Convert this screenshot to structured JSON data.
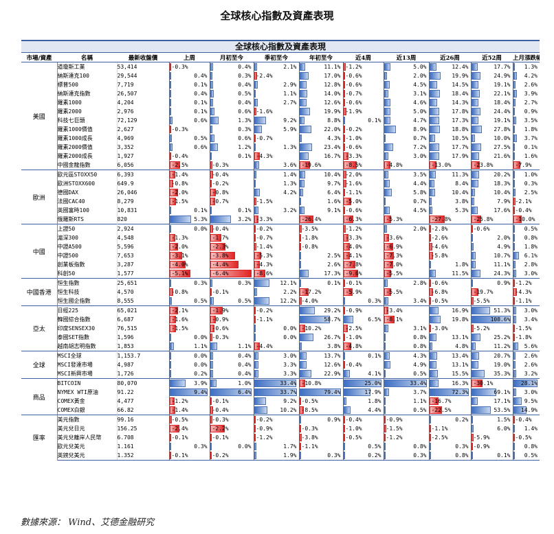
{
  "title": "全球核心指數及資產表現",
  "table_title": "全球核心指數及資產表現",
  "source": "數據來源： Wind、艾德金融研究",
  "headers": [
    "市場/資產",
    "名稱",
    "最新收盤價",
    "上周",
    "月初至今",
    "季初至今",
    "年初至今",
    "近4周",
    "近13周",
    "近26周",
    "近52周",
    "上月漲跌幅"
  ],
  "colors": {
    "positive_bar": "#3e6fc4",
    "negative_bar": "#e02424",
    "rule": "#3b5fa0"
  },
  "groups": [
    {
      "region": "美國",
      "rows": [
        {
          "name": "道瓊斯工業",
          "close": "53,414",
          "values": [
            -0.3,
            0.4,
            2.1,
            11.1,
            -1.2,
            5.0,
            12.4,
            17.7,
            1.3
          ]
        },
        {
          "name": "納斯達克100",
          "close": "29,544",
          "values": [
            0.4,
            0.3,
            -2.4,
            17.0,
            -0.6,
            2.0,
            19.9,
            24.9,
            4.2
          ]
        },
        {
          "name": "標普500",
          "close": "7,719",
          "values": [
            0.1,
            0.4,
            2.9,
            12.8,
            -0.6,
            4.5,
            14.5,
            19.1,
            2.6
          ]
        },
        {
          "name": "納斯達克指數",
          "close": "26,507",
          "values": [
            0.4,
            0.5,
            1.1,
            14.0,
            -0.7,
            3.1,
            18.4,
            22.1,
            3.9
          ]
        },
        {
          "name": "羅素1000",
          "close": "4,204",
          "values": [
            0.1,
            0.4,
            2.7,
            12.6,
            -0.6,
            4.6,
            14.3,
            18.4,
            2.7
          ]
        },
        {
          "name": "羅素2000",
          "close": "2,976",
          "values": [
            0.1,
            0.6,
            -1.6,
            19.9,
            -1.9,
            5.0,
            17.8,
            24.4,
            0.9
          ]
        },
        {
          "name": "科技七巨頭",
          "close": "72,129",
          "values": [
            0.6,
            1.3,
            9.2,
            8.8,
            0.1,
            4.7,
            17.3,
            19.1,
            3.5
          ]
        },
        {
          "name": "羅素1000價值",
          "close": "2,627",
          "values": [
            -0.3,
            0.3,
            5.9,
            22.0,
            -0.2,
            8.9,
            18.8,
            27.8,
            1.8
          ]
        },
        {
          "name": "羅素1000成長",
          "close": "4,969",
          "values": [
            0.5,
            0.6,
            -0.7,
            4.3,
            -1.0,
            0.7,
            10.5,
            10.0,
            3.7
          ]
        },
        {
          "name": "羅素2000價值",
          "close": "3,352",
          "values": [
            0.6,
            1.2,
            1.3,
            23.4,
            -0.6,
            7.2,
            17.7,
            27.5,
            0.1
          ]
        },
        {
          "name": "羅素2000成長",
          "close": "1,927",
          "values": [
            -0.4,
            0.1,
            -4.3,
            16.7,
            -3.3,
            3.0,
            17.9,
            21.6,
            1.6
          ]
        },
        {
          "name": "中國金龍指數",
          "close": "6,056",
          "values": [
            -2.5,
            -0.3,
            3.6,
            -19.6,
            -8.5,
            -4.8,
            -13.0,
            -23.8,
            -7.9
          ]
        }
      ]
    },
    {
      "region": "歐洲",
      "rows": [
        {
          "name": "歐元區STOXX50",
          "close": "6,393",
          "values": [
            -1.4,
            -0.4,
            1.4,
            10.4,
            -2.0,
            3.5,
            11.3,
            20.2,
            1.0
          ]
        },
        {
          "name": "歐洲STOXX600",
          "close": "649.9",
          "values": [
            -0.8,
            -0.2,
            1.3,
            9.7,
            -1.6,
            4.4,
            8.4,
            18.3,
            0.3
          ]
        },
        {
          "name": "德國DAX",
          "close": "26,046",
          "values": [
            -2.0,
            -0.8,
            4.2,
            6.4,
            -1.1,
            5.8,
            10.4,
            10.4,
            2.5
          ]
        },
        {
          "name": "法國CAC40",
          "close": "8,279",
          "values": [
            -1.5,
            -0.7,
            -1.5,
            1.6,
            -5.0,
            0.7,
            3.8,
            7.9,
            -2.1
          ]
        },
        {
          "name": "英國富時100",
          "close": "10,831",
          "values": [
            0.1,
            0.1,
            3.2,
            9.1,
            -0.6,
            4.5,
            5.3,
            17.6,
            -0.4
          ]
        },
        {
          "name": "俄羅斯RTS",
          "close": "820",
          "values": [
            5.3,
            3.2,
            -3.3,
            -26.4,
            -6.3,
            -5.3,
            -27.8,
            -25.8,
            -10.0
          ]
        }
      ]
    },
    {
      "region": "中國",
      "rows": [
        {
          "name": "上證50",
          "close": "2,924",
          "values": [
            0.0,
            -0.4,
            -0.2,
            -3.5,
            -1.2,
            2.0,
            -2.8,
            -0.6,
            0.5
          ]
        },
        {
          "name": "滬深300",
          "close": "4,548",
          "values": [
            -1.3,
            -1.7,
            -0.7,
            -1.8,
            -3.3,
            -3.6,
            -2.6,
            2.0,
            0.8
          ]
        },
        {
          "name": "中證A500",
          "close": "5,596",
          "values": [
            -2.0,
            -2.3,
            -1.4,
            -0.8,
            -4.0,
            -6.9,
            -4.6,
            4.9,
            1.8
          ]
        },
        {
          "name": "中證500",
          "close": "7,653",
          "values": [
            -3.1,
            -3.8,
            -5.3,
            2.5,
            -4.1,
            -7.3,
            -5.8,
            10.7,
            6.1
          ]
        },
        {
          "name": "創業板指數",
          "close": "3,287",
          "values": [
            -4.0,
            -4.4,
            -4.3,
            2.6,
            -7.8,
            -7.0,
            1.8,
            11.1,
            2.8
          ]
        },
        {
          "name": "科創50",
          "close": "1,577",
          "values": [
            -5.1,
            -6.4,
            -8.6,
            17.3,
            -9.6,
            -5.5,
            11.5,
            24.3,
            3.0
          ]
        }
      ]
    },
    {
      "region": "中國香港",
      "rows": [
        {
          "name": "恒生指數",
          "close": "25,651",
          "values": [
            0.3,
            0.3,
            12.1,
            0.1,
            -0.1,
            2.8,
            -0.6,
            0.9,
            -1.2
          ]
        },
        {
          "name": "恒生科技",
          "close": "4,570",
          "values": [
            -0.8,
            -0.1,
            2.2,
            -17.2,
            -5.9,
            -5.5,
            -6.8,
            -19.7,
            -4.3
          ]
        },
        {
          "name": "恒生國企指數",
          "close": "8,555",
          "values": [
            0.5,
            0.5,
            12.2,
            -4.0,
            0.3,
            3.4,
            -0.5,
            -5.5,
            -1.1
          ]
        }
      ]
    },
    {
      "region": "亞太",
      "rows": [
        {
          "name": "日經225",
          "close": "65,021",
          "values": [
            -2.1,
            -1.9,
            -0.2,
            29.2,
            -0.9,
            -3.4,
            16.9,
            51.3,
            3.0
          ]
        },
        {
          "name": "韓國綜合指數",
          "close": "6,687",
          "values": [
            -1.6,
            -0.9,
            -1.1,
            58.7,
            6.5,
            -8.1,
            19.8,
            108.6,
            3.4
          ]
        },
        {
          "name": "印度SENSEX30",
          "close": "76,515",
          "values": [
            -1.5,
            -0.6,
            0.0,
            -10.2,
            -2.5,
            3.1,
            -3.0,
            -5.2,
            -1.5
          ]
        },
        {
          "name": "泰國SET指數",
          "close": "1,596",
          "values": [
            0.0,
            -0.3,
            0.0,
            26.7,
            -1.0,
            0.8,
            13.1,
            25.2,
            -1.8
          ]
        },
        {
          "name": "越南胡志明指數",
          "close": "1,853",
          "values": [
            1.1,
            1.1,
            -4.4,
            3.8,
            -4.8,
            0.8,
            4.8,
            11.2,
            5.6
          ]
        }
      ]
    },
    {
      "region": "全球",
      "rows": [
        {
          "name": "MSCI全球",
          "close": "1,153.7",
          "values": [
            0.0,
            0.4,
            3.0,
            13.7,
            0.1,
            4.3,
            13.4,
            20.7,
            2.6
          ]
        },
        {
          "name": "MSCI發達市場",
          "close": "4,987",
          "values": [
            0.0,
            0.4,
            3.3,
            12.6,
            -0.4,
            4.9,
            13.1,
            19.0,
            2.6
          ]
        },
        {
          "name": "MSCI新興市場",
          "close": "1,726",
          "values": [
            0.2,
            0.4,
            3.3,
            22.9,
            4.1,
            0.5,
            15.5,
            35.3,
            3.2
          ]
        }
      ]
    },
    {
      "region": "商品",
      "rows": [
        {
          "name": "BITCOIN",
          "close": "80,070",
          "values": [
            3.9,
            1.0,
            33.4,
            -10.8,
            25.0,
            33.4,
            16.3,
            -30.1,
            28.1
          ]
        },
        {
          "name": "NYMEX WTI原油",
          "close": "91.22",
          "values": [
            9.4,
            6.4,
            33.7,
            79.4,
            17.9,
            3.7,
            72.3,
            69.1,
            3.0
          ]
        },
        {
          "name": "COMEX黃金",
          "close": "4,477",
          "values": [
            -1.2,
            -0.1,
            9.2,
            -0.5,
            1.8,
            1.1,
            -16.7,
            17.1,
            9.5
          ]
        },
        {
          "name": "COMEX白銀",
          "close": "66.82",
          "values": [
            -1.4,
            -0.4,
            10.2,
            -8.5,
            4.4,
            0.5,
            -22.5,
            53.5,
            14.9
          ]
        }
      ]
    },
    {
      "region": "匯率",
      "rows": [
        {
          "name": "美元指數",
          "close": "99.16",
          "values": [
            -0.5,
            -0.3,
            -0.2,
            0.9,
            -0.4,
            -0.9,
            0.2,
            1.5,
            -0.4
          ]
        },
        {
          "name": "美元兌日元",
          "close": "156.25",
          "values": [
            -2.4,
            -2.2,
            -0.9,
            -0.3,
            -1.0,
            -1.5,
            -1.1,
            6.0,
            1.4
          ]
        },
        {
          "name": "美元兌離岸人民幣",
          "close": "6.708",
          "values": [
            -0.1,
            -0.1,
            -1.2,
            -3.8,
            -0.5,
            -1.2,
            -2.5,
            -5.9,
            -0.5
          ]
        },
        {
          "name": "歐元兌美元",
          "close": "1.161",
          "values": [
            0.3,
            0.0,
            1.7,
            -1.1,
            0.5,
            0.8,
            0.3,
            -0.9,
            0.8
          ]
        },
        {
          "name": "英鎊兌美元",
          "close": "1.352",
          "values": [
            -0.1,
            -0.2,
            1.9,
            0.3,
            0.2,
            0.3,
            0.8,
            0.1,
            0.5
          ]
        }
      ]
    }
  ]
}
